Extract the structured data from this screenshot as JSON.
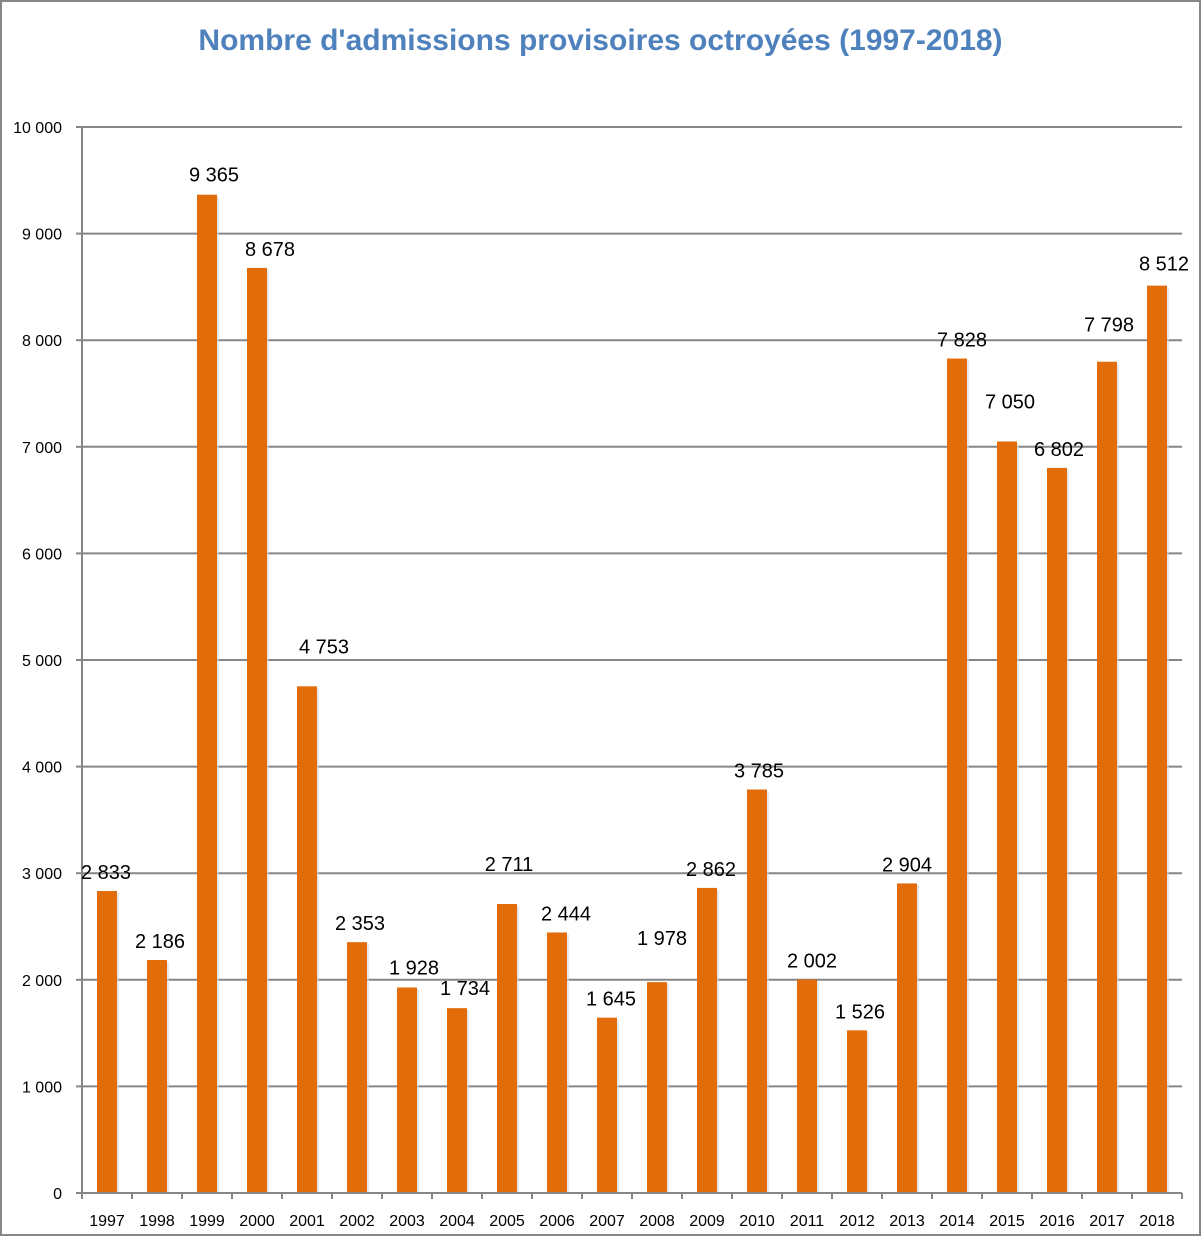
{
  "chart_data": {
    "type": "bar",
    "title": "Nombre d'admissions provisoires octroyées (1997-2018)",
    "xlabel": "",
    "ylabel": "",
    "categories": [
      "1997",
      "1998",
      "1999",
      "2000",
      "2001",
      "2002",
      "2003",
      "2004",
      "2005",
      "2006",
      "2007",
      "2008",
      "2009",
      "2010",
      "2011",
      "2012",
      "2013",
      "2014",
      "2015",
      "2016",
      "2017",
      "2018"
    ],
    "values": [
      2833,
      2186,
      9365,
      8678,
      4753,
      2353,
      1928,
      1734,
      2711,
      2444,
      1645,
      1978,
      2862,
      3785,
      2002,
      1526,
      2904,
      7828,
      7050,
      6802,
      7798,
      8512
    ],
    "data_labels": [
      "2 833",
      "2 186",
      "9 365",
      "8 678",
      "4 753",
      "2 353",
      "1 928",
      "1 734",
      "2 711",
      "2 444",
      "1 645",
      "1 978",
      "2 862",
      "3 785",
      "2 002",
      "1 526",
      "2 904",
      "7 828",
      "7 050",
      "6 802",
      "7 798",
      "8 512"
    ],
    "ylim": [
      0,
      10000
    ],
    "yticks": [
      0,
      1000,
      2000,
      3000,
      4000,
      5000,
      6000,
      7000,
      8000,
      9000,
      10000
    ],
    "ytick_labels": [
      "0",
      "1 000",
      "2 000",
      "3 000",
      "4 000",
      "5 000",
      "6 000",
      "7 000",
      "8 000",
      "9 000",
      "10 000"
    ],
    "grid": true,
    "legend": "none",
    "colors": {
      "bar": "#e36c0a",
      "title": "#4f81bd",
      "grid": "#868686"
    }
  }
}
